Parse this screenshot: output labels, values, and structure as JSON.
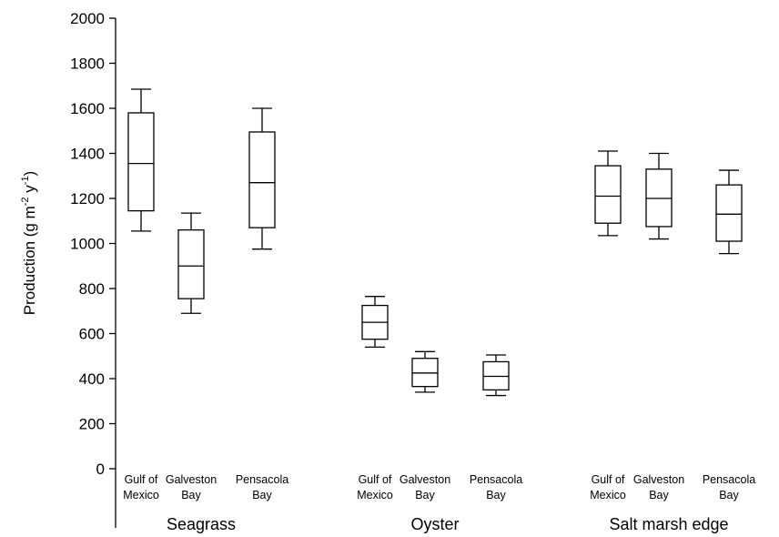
{
  "chart_data": {
    "type": "boxplot",
    "ylabel_parts": {
      "base": "Production (g m",
      "exp1": "-2",
      "mid": " y",
      "exp2": "-1",
      "end": ")"
    },
    "ylim": [
      0,
      2000
    ],
    "yticks": [
      0,
      200,
      400,
      600,
      800,
      1000,
      1200,
      1400,
      1600,
      1800,
      2000
    ],
    "groups": [
      {
        "name": "Seagrass",
        "boxes": [
          {
            "label_lines": [
              "Gulf of",
              "Mexico"
            ],
            "whisker_low": 1055,
            "q1": 1145,
            "median": 1355,
            "q3": 1580,
            "whisker_high": 1685
          },
          {
            "label_lines": [
              "Galveston",
              "Bay"
            ],
            "whisker_low": 690,
            "q1": 755,
            "median": 900,
            "q3": 1060,
            "whisker_high": 1135
          },
          {
            "label_lines": [
              "Pensacola",
              "Bay"
            ],
            "whisker_low": 975,
            "q1": 1070,
            "median": 1270,
            "q3": 1495,
            "whisker_high": 1600
          }
        ]
      },
      {
        "name": "Oyster",
        "boxes": [
          {
            "label_lines": [
              "Gulf of",
              "Mexico"
            ],
            "whisker_low": 540,
            "q1": 575,
            "median": 650,
            "q3": 725,
            "whisker_high": 765
          },
          {
            "label_lines": [
              "Galveston",
              "Bay"
            ],
            "whisker_low": 340,
            "q1": 365,
            "median": 425,
            "q3": 490,
            "whisker_high": 520
          },
          {
            "label_lines": [
              "Pensacola",
              "Bay"
            ],
            "whisker_low": 325,
            "q1": 350,
            "median": 410,
            "q3": 475,
            "whisker_high": 505
          }
        ]
      },
      {
        "name": "Salt marsh edge",
        "boxes": [
          {
            "label_lines": [
              "Gulf of",
              "Mexico"
            ],
            "whisker_low": 1035,
            "q1": 1090,
            "median": 1210,
            "q3": 1345,
            "whisker_high": 1410
          },
          {
            "label_lines": [
              "Galveston",
              "Bay"
            ],
            "whisker_low": 1020,
            "q1": 1075,
            "median": 1200,
            "q3": 1330,
            "whisker_high": 1400
          },
          {
            "label_lines": [
              "Pensacola",
              "Bay"
            ],
            "whisker_low": 955,
            "q1": 1010,
            "median": 1130,
            "q3": 1260,
            "whisker_high": 1325
          }
        ]
      }
    ],
    "grid": false,
    "legend": "none"
  }
}
